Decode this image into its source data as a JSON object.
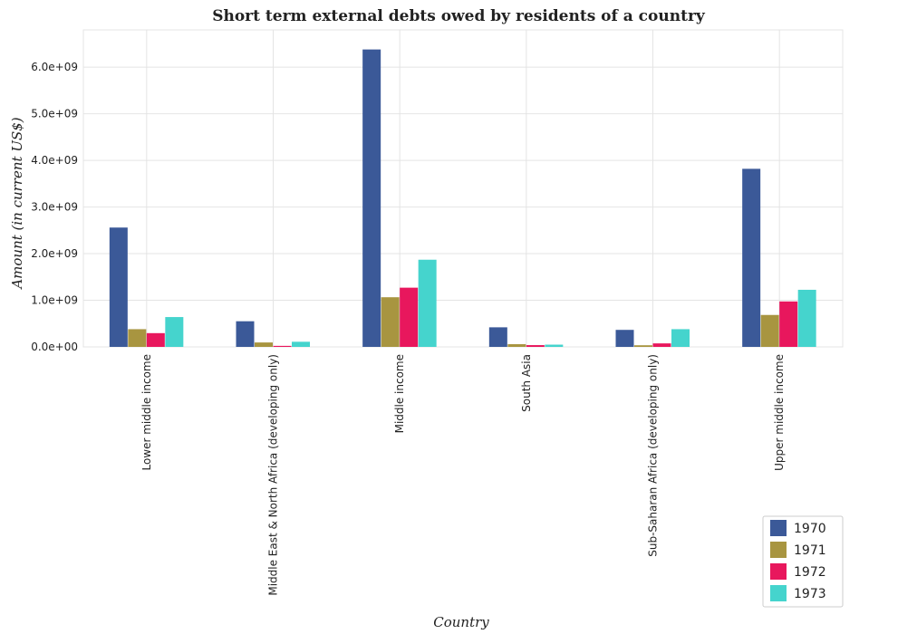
{
  "chart_data": {
    "type": "bar",
    "title": "Short term external debts owed by residents of a country",
    "xlabel": "Country",
    "ylabel": "Amount (in current US$)",
    "ylim": [
      0,
      6800000000
    ],
    "yticks": [
      0,
      1000000000,
      2000000000,
      3000000000,
      4000000000,
      5000000000,
      6000000000
    ],
    "ytick_labels": [
      "0.0e+00",
      "1.0e+09",
      "2.0e+09",
      "3.0e+09",
      "4.0e+09",
      "5.0e+09",
      "6.0e+09"
    ],
    "grid": true,
    "legend_position": "bottom-right",
    "categories": [
      "Lower middle income",
      "Middle East & North Africa (developing only)",
      "Middle income",
      "South Asia",
      "Sub-Saharan Africa (developing only)",
      "Upper middle income"
    ],
    "series": [
      {
        "name": "1970",
        "color": "#3b5998",
        "values": [
          2560000000,
          550000000,
          6380000000,
          420000000,
          365000000,
          3820000000
        ]
      },
      {
        "name": "1971",
        "color": "#a89540",
        "values": [
          380000000,
          95000000,
          1065000000,
          58000000,
          35000000,
          685000000
        ]
      },
      {
        "name": "1972",
        "color": "#e8175d",
        "values": [
          295000000,
          22000000,
          1270000000,
          38000000,
          75000000,
          975000000
        ]
      },
      {
        "name": "1973",
        "color": "#45d4cd",
        "values": [
          640000000,
          110000000,
          1870000000,
          48000000,
          380000000,
          1225000000
        ]
      }
    ]
  }
}
